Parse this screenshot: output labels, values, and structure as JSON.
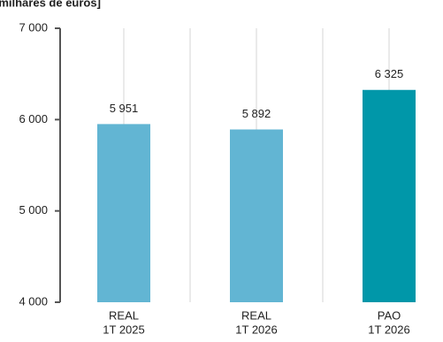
{
  "chart_data": {
    "type": "bar",
    "title": "[milhares de euros]",
    "categories": [
      [
        "REAL",
        "1T 2025"
      ],
      [
        "REAL",
        "1T 2026"
      ],
      [
        "PAO",
        "1T 2026"
      ]
    ],
    "values": [
      5951,
      5892,
      6325
    ],
    "value_labels": [
      "5 951",
      "5 892",
      "6 325"
    ],
    "colors": [
      "#62b5d3",
      "#62b5d3",
      "#0097a9"
    ],
    "ylim": [
      4000,
      7000
    ],
    "yticks": [
      {
        "value": 4000,
        "label": "4 000"
      },
      {
        "value": 5000,
        "label": "5 000"
      },
      {
        "value": 6000,
        "label": "6 000"
      },
      {
        "value": 7000,
        "label": "7 000"
      }
    ]
  }
}
